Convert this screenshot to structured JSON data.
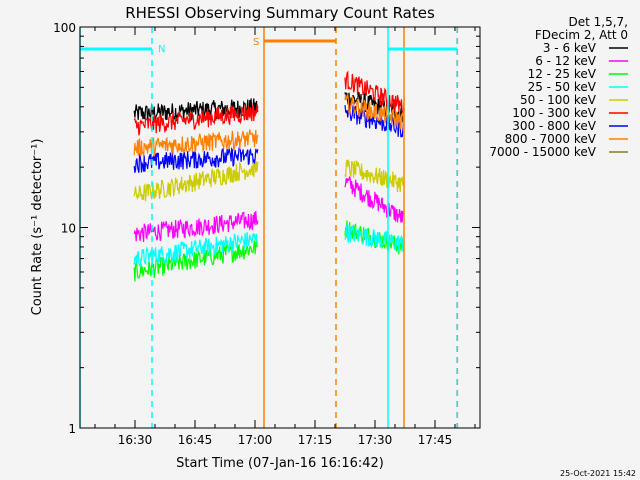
{
  "chart_data": {
    "type": "line",
    "title": "RHESSI Observing Summary Count Rates",
    "xlabel": "Start Time (07-Jan-16 16:16:42)",
    "ylabel": "Count Rate (s⁻¹ detector⁻¹)",
    "yscale": "log",
    "ylim": [
      1,
      100
    ],
    "xlim_minutes_after_16h": [
      16.25,
      116.25
    ],
    "x_ticks": [
      {
        "label": "16:30",
        "t": 30
      },
      {
        "label": "16:45",
        "t": 45
      },
      {
        "label": "17:00",
        "t": 60
      },
      {
        "label": "17:15",
        "t": 75
      },
      {
        "label": "17:30",
        "t": 90
      },
      {
        "label": "17:45",
        "t": 105
      }
    ],
    "y_ticks": [
      {
        "label": "1",
        "v": 1
      },
      {
        "label": "10",
        "v": 10
      },
      {
        "label": "100",
        "v": 100
      }
    ],
    "legend_header": [
      "Det 1,5,7,",
      "FDecim 2, Att 0"
    ],
    "legend_position": "top-right outside",
    "segments_minutes": [
      [
        29.8,
        60.7
      ],
      [
        82.5,
        97.3
      ]
    ],
    "series": [
      {
        "name": "3 - 6 keV",
        "color": "#000000",
        "seg1": [
          37,
          40
        ],
        "seg2": [
          45,
          37
        ]
      },
      {
        "name": "6 - 12 keV",
        "color": "#ff00ff",
        "seg1": [
          9.3,
          11
        ],
        "seg2": [
          17,
          11
        ]
      },
      {
        "name": "12 - 25 keV",
        "color": "#00ff00",
        "seg1": [
          6,
          8
        ],
        "seg2": [
          10,
          8
        ]
      },
      {
        "name": "25 - 50 keV",
        "color": "#00ffff",
        "seg1": [
          7,
          8.8
        ],
        "seg2": [
          9.5,
          8.3
        ]
      },
      {
        "name": "50 - 100 keV",
        "color": "#cccc00",
        "seg1": [
          14.5,
          20
        ],
        "seg2": [
          20,
          16.5
        ]
      },
      {
        "name": "100 - 300 keV",
        "color": "#ff0000",
        "seg1": [
          32,
          38
        ],
        "seg2": [
          55,
          40
        ]
      },
      {
        "name": "300 - 800 keV",
        "color": "#0000ff",
        "seg1": [
          21,
          23
        ],
        "seg2": [
          38,
          31
        ]
      },
      {
        "name": "800 - 7000 keV",
        "color": "#ff8000",
        "seg1": [
          25,
          28
        ],
        "seg2": [
          42,
          34
        ]
      },
      {
        "name": "7000 - 15000 keV",
        "color": "#808020",
        "seg1": [
          null,
          null
        ],
        "seg2": [
          null,
          null
        ]
      }
    ],
    "annotations": {
      "night_label": "N",
      "saa_label": "S",
      "night_color": "#00ffff",
      "saa_color": "#ff8000",
      "night_intervals": [
        [
          16.25,
          34.25
        ],
        [
          93.25,
          110.5
        ]
      ],
      "saa_intervals": [
        [
          62.25,
          80.25
        ]
      ],
      "solid_lines": [
        {
          "t": 16.25,
          "color": "#00ffff"
        },
        {
          "t": 62.25,
          "color": "#ff8000"
        },
        {
          "t": 93.25,
          "color": "#00ffff"
        },
        {
          "t": 97.25,
          "color": "#ff8000"
        }
      ],
      "dashed_lines": [
        {
          "t": 34.25,
          "color": "#00ffff"
        },
        {
          "t": 80.25,
          "color": "#ff8000"
        },
        {
          "t": 110.5,
          "color": "#00ffff"
        },
        {
          "t": 110.6,
          "color": "#aaaaaa"
        }
      ]
    },
    "grid": false
  },
  "footer": {
    "timestamp": "25-Oct-2021 15:42"
  }
}
